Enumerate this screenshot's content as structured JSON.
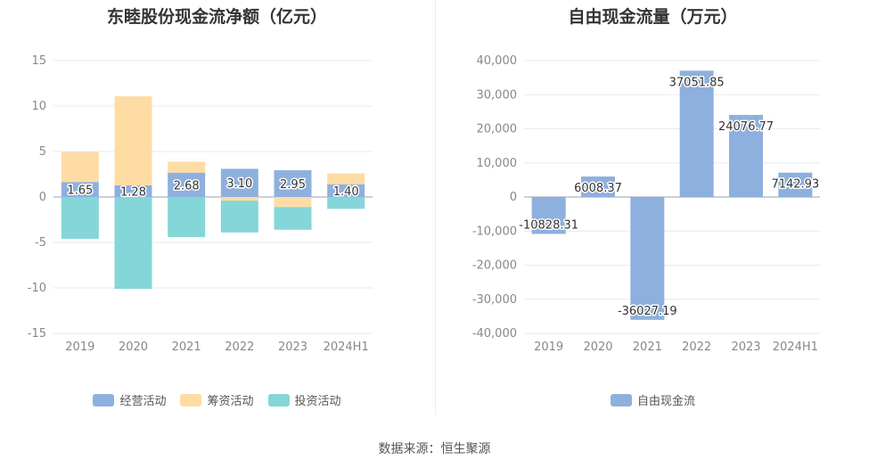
{
  "source_text": "数据来源：恒生聚源",
  "chart_data": [
    {
      "type": "bar",
      "stacked": true,
      "title": "东睦股份现金流净额（亿元）",
      "categories": [
        "2019",
        "2020",
        "2021",
        "2022",
        "2023",
        "2024H1"
      ],
      "ylim": [
        -15,
        15
      ],
      "yticks": [
        "15",
        "10",
        "5",
        "0",
        "-5",
        "-10",
        "-15"
      ],
      "ytick_values": [
        15,
        10,
        5,
        0,
        -5,
        -10,
        -15
      ],
      "grid": true,
      "legend_position": "bottom",
      "series": [
        {
          "name": "经营活动",
          "color": "#8eb0de",
          "values": [
            1.65,
            1.28,
            2.68,
            3.1,
            2.95,
            1.4
          ],
          "labels": [
            "1.65",
            "1.28",
            "2.68",
            "3.10",
            "2.95",
            "1.40"
          ]
        },
        {
          "name": "筹资活动",
          "color": "#fedca4",
          "values": [
            3.3,
            9.8,
            1.2,
            -0.4,
            -1.1,
            1.2
          ]
        },
        {
          "name": "投资活动",
          "color": "#84d6d8",
          "values": [
            -4.6,
            -10.1,
            -4.4,
            -3.5,
            -2.5,
            -1.3
          ]
        }
      ]
    },
    {
      "type": "bar",
      "title": "自由现金流量（万元）",
      "categories": [
        "2019",
        "2020",
        "2021",
        "2022",
        "2023",
        "2024H1"
      ],
      "ylim": [
        -40000,
        40000
      ],
      "yticks": [
        "40,000",
        "30,000",
        "20,000",
        "10,000",
        "0",
        "-10,000",
        "-20,000",
        "-30,000",
        "-40,000"
      ],
      "ytick_values": [
        40000,
        30000,
        20000,
        10000,
        0,
        -10000,
        -20000,
        -30000,
        -40000
      ],
      "grid": true,
      "legend_position": "bottom",
      "series": [
        {
          "name": "自由现金流",
          "color": "#8eb0de",
          "values": [
            -10828.31,
            6008.37,
            -36027.19,
            37051.85,
            24076.77,
            7142.93
          ],
          "labels": [
            "-10828.31",
            "6008.37",
            "-36027.19",
            "37051.85",
            "24076.77",
            "7142.93"
          ]
        }
      ]
    }
  ]
}
